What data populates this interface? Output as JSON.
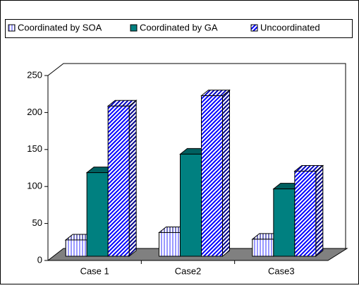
{
  "chart_data": {
    "type": "bar",
    "three_d": true,
    "legend": "top",
    "categories": [
      "Case 1",
      "Case2",
      "Case3"
    ],
    "series": [
      {
        "name": "Coordinated by SOA",
        "color": "#9999ff",
        "pattern": "vertical",
        "values": [
          22,
          32,
          23
        ]
      },
      {
        "name": "Coordinated by GA",
        "color": "#008080",
        "pattern": "solid",
        "values": [
          113,
          138,
          91
        ]
      },
      {
        "name": "Uncoordinated",
        "color": "#0000ff",
        "pattern": "diagonal",
        "values": [
          203,
          217,
          115
        ]
      }
    ],
    "ylim": [
      0,
      250
    ],
    "yticks": [
      0,
      50,
      100,
      150,
      200,
      250
    ],
    "grid": false
  }
}
